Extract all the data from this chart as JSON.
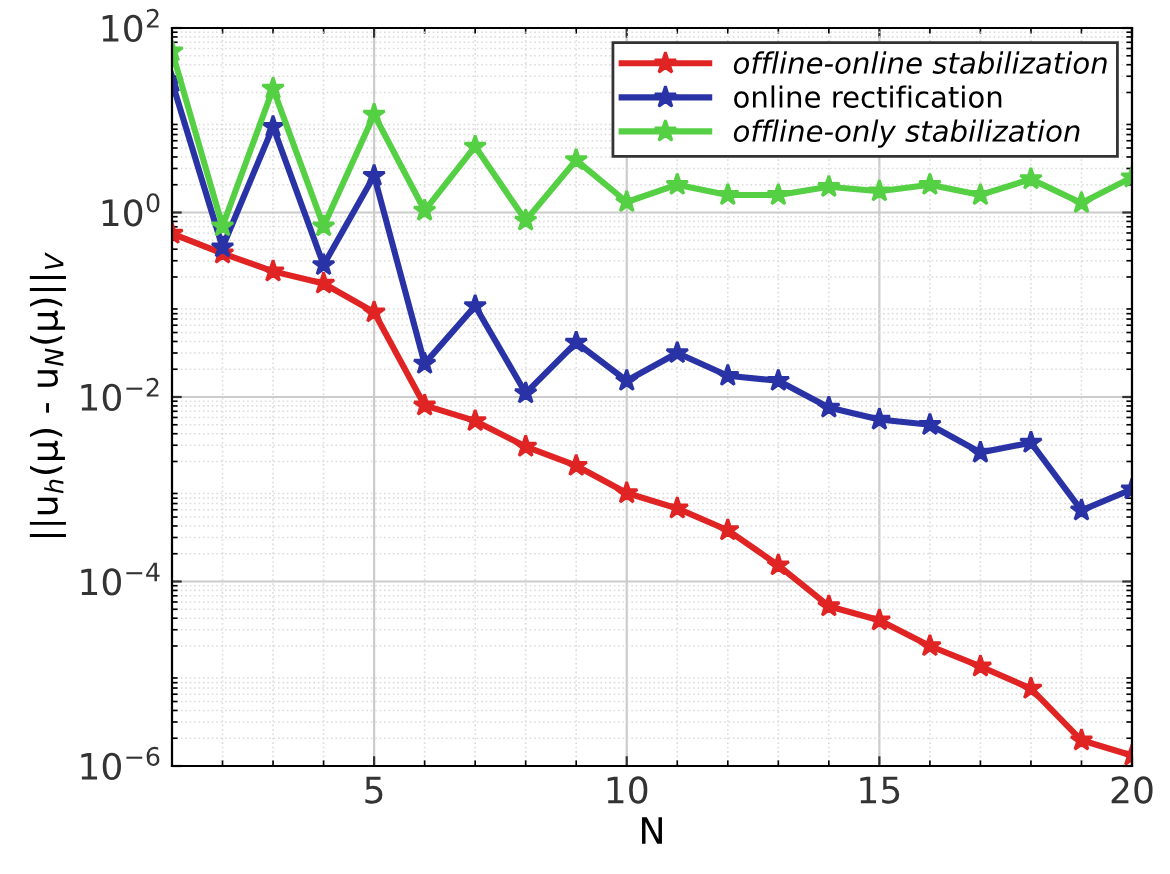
{
  "chart_data": {
    "type": "line",
    "xlabel": "N",
    "ylabel": "||u$_{h}$(μ) - u$_{N}$(μ)||$_{V}$",
    "x": [
      1,
      2,
      3,
      4,
      5,
      6,
      7,
      8,
      9,
      10,
      11,
      12,
      13,
      14,
      15,
      16,
      17,
      18,
      19,
      20
    ],
    "series": [
      {
        "name": "offline-online stabilization",
        "color": "#e02424",
        "values": [
          0.59,
          0.36,
          0.23,
          0.17,
          0.083,
          0.0081,
          0.0055,
          0.0029,
          0.0018,
          0.00091,
          0.00062,
          0.00036,
          0.00015,
          5.4e-05,
          3.8e-05,
          2e-05,
          1.2e-05,
          6.9e-06,
          1.9e-06,
          1.3e-06
        ]
      },
      {
        "name": "online rectification",
        "color": "#2a33a6",
        "values": [
          26,
          0.42,
          8.5,
          0.27,
          2.5,
          0.023,
          0.097,
          0.011,
          0.039,
          0.015,
          0.03,
          0.017,
          0.015,
          0.0077,
          0.0057,
          0.005,
          0.0025,
          0.0032,
          0.00059,
          0.001
        ]
      },
      {
        "name": "offline-only stabilization",
        "color": "#55d044",
        "values": [
          56,
          0.71,
          22,
          0.71,
          11.5,
          1.05,
          5.2,
          0.82,
          3.7,
          1.3,
          2.0,
          1.55,
          1.55,
          1.9,
          1.7,
          2.0,
          1.55,
          2.3,
          1.27,
          2.4
        ]
      }
    ],
    "log": "y",
    "xlim": [
      1,
      20
    ],
    "xticks": [
      5,
      10,
      15,
      20
    ],
    "ylim": [
      1e-06,
      100
    ],
    "yticks": [
      {
        "value": 1e-06,
        "label": "10$^{−6}$"
      },
      {
        "value": 0.0001,
        "label": "10$^{−4}$"
      },
      {
        "value": 0.01,
        "label": "10$^{−2}$"
      },
      {
        "value": 1,
        "label": "10$^{0}$"
      },
      {
        "value": 100,
        "label": "10$^{2}$"
      }
    ],
    "grid": true,
    "legend": "top right",
    "marker": "star",
    "line_style": "solid"
  }
}
